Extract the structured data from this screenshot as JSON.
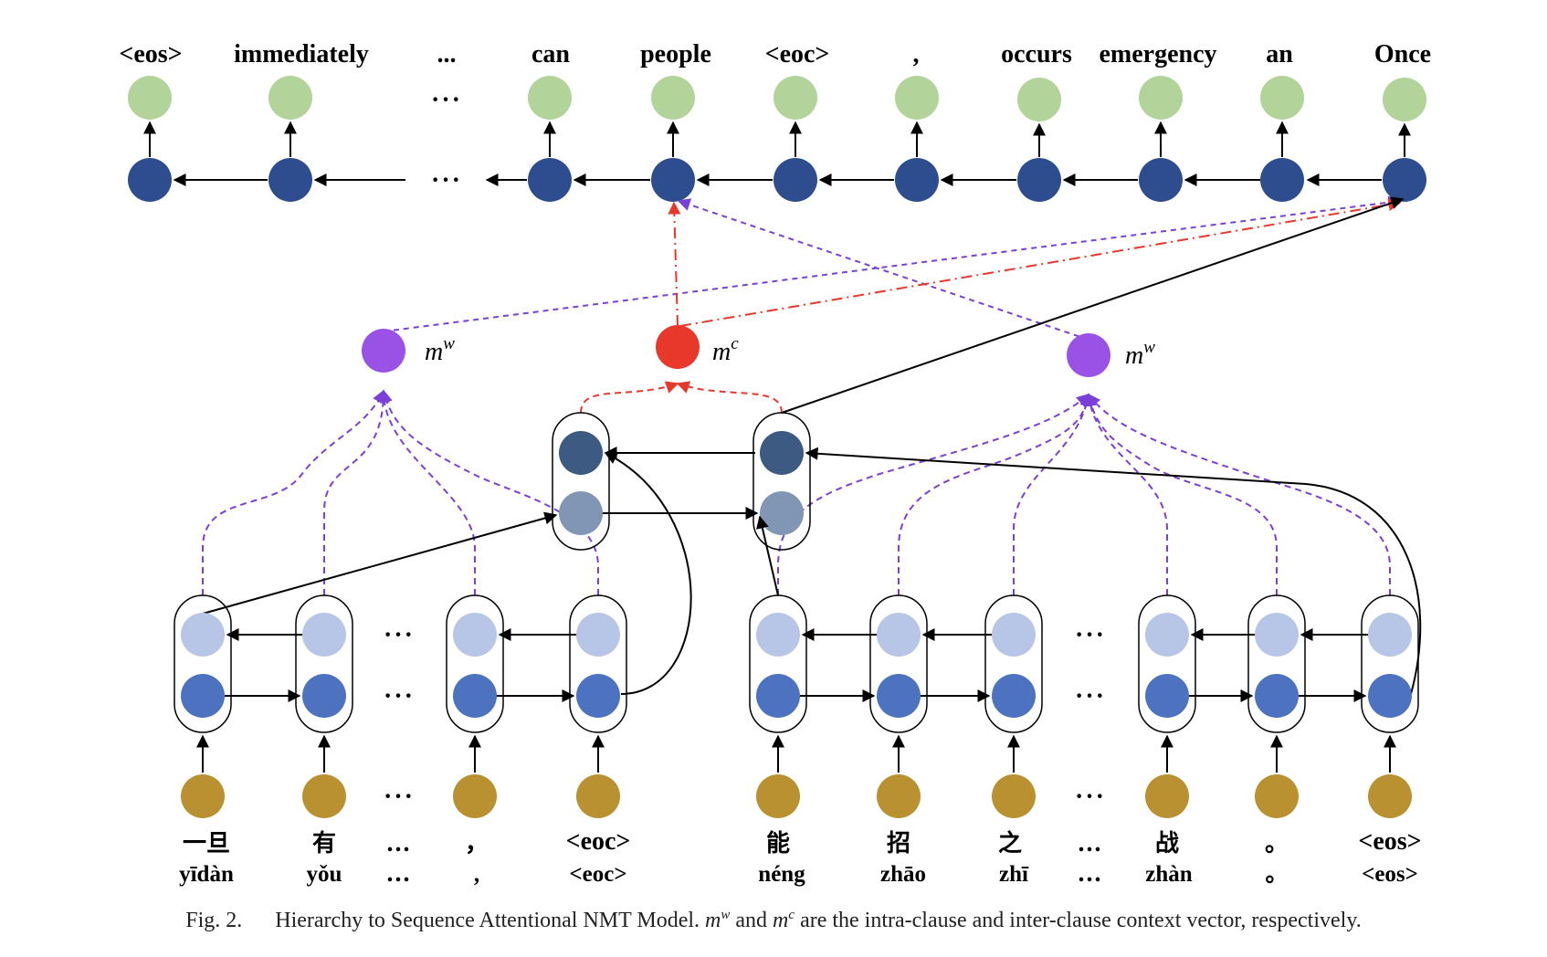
{
  "output_tokens": [
    "<eos>",
    "immediately",
    "...",
    "can",
    "people",
    "<eoc>",
    ",",
    "occurs",
    "emergency",
    "an",
    "Once"
  ],
  "input_tokens": [
    "一旦",
    "有",
    "...",
    "，",
    "<eoc>",
    "能",
    "招",
    "之",
    "...",
    "战",
    "。",
    "<eos>"
  ],
  "input_pinyin": [
    "yīdàn",
    "yǒu",
    "...",
    ",",
    "<eoc>",
    "néng",
    "zhāo",
    "zhī",
    "...",
    "zhàn",
    "。",
    "<eos>"
  ],
  "context": {
    "left_word": {
      "base": "m",
      "sup": "w"
    },
    "clause": {
      "base": "m",
      "sup": "c"
    },
    "right_word": {
      "base": "m",
      "sup": "w"
    }
  },
  "ellipsis": "···",
  "caption": {
    "figno": "Fig. 2.",
    "text_a": "Hierarchy to Sequence Attentional NMT Model.",
    "mw_base": "m",
    "mw_sup": "w",
    "text_b": "and",
    "mc_base": "m",
    "mc_sup": "c",
    "text_c": "are the intra-clause and inter-clause context vector, respectively."
  },
  "colors": {
    "output_green": "#b2d39a",
    "decoder_navy": "#2e4d8f",
    "word_light": "#b7c6e6",
    "word_dark": "#4c72c0",
    "clause_dark": "#3c5a82",
    "clause_light": "#8096b4",
    "embed_gold": "#b99130",
    "context_purple": "#9a52e6",
    "context_red": "#e7382b"
  }
}
